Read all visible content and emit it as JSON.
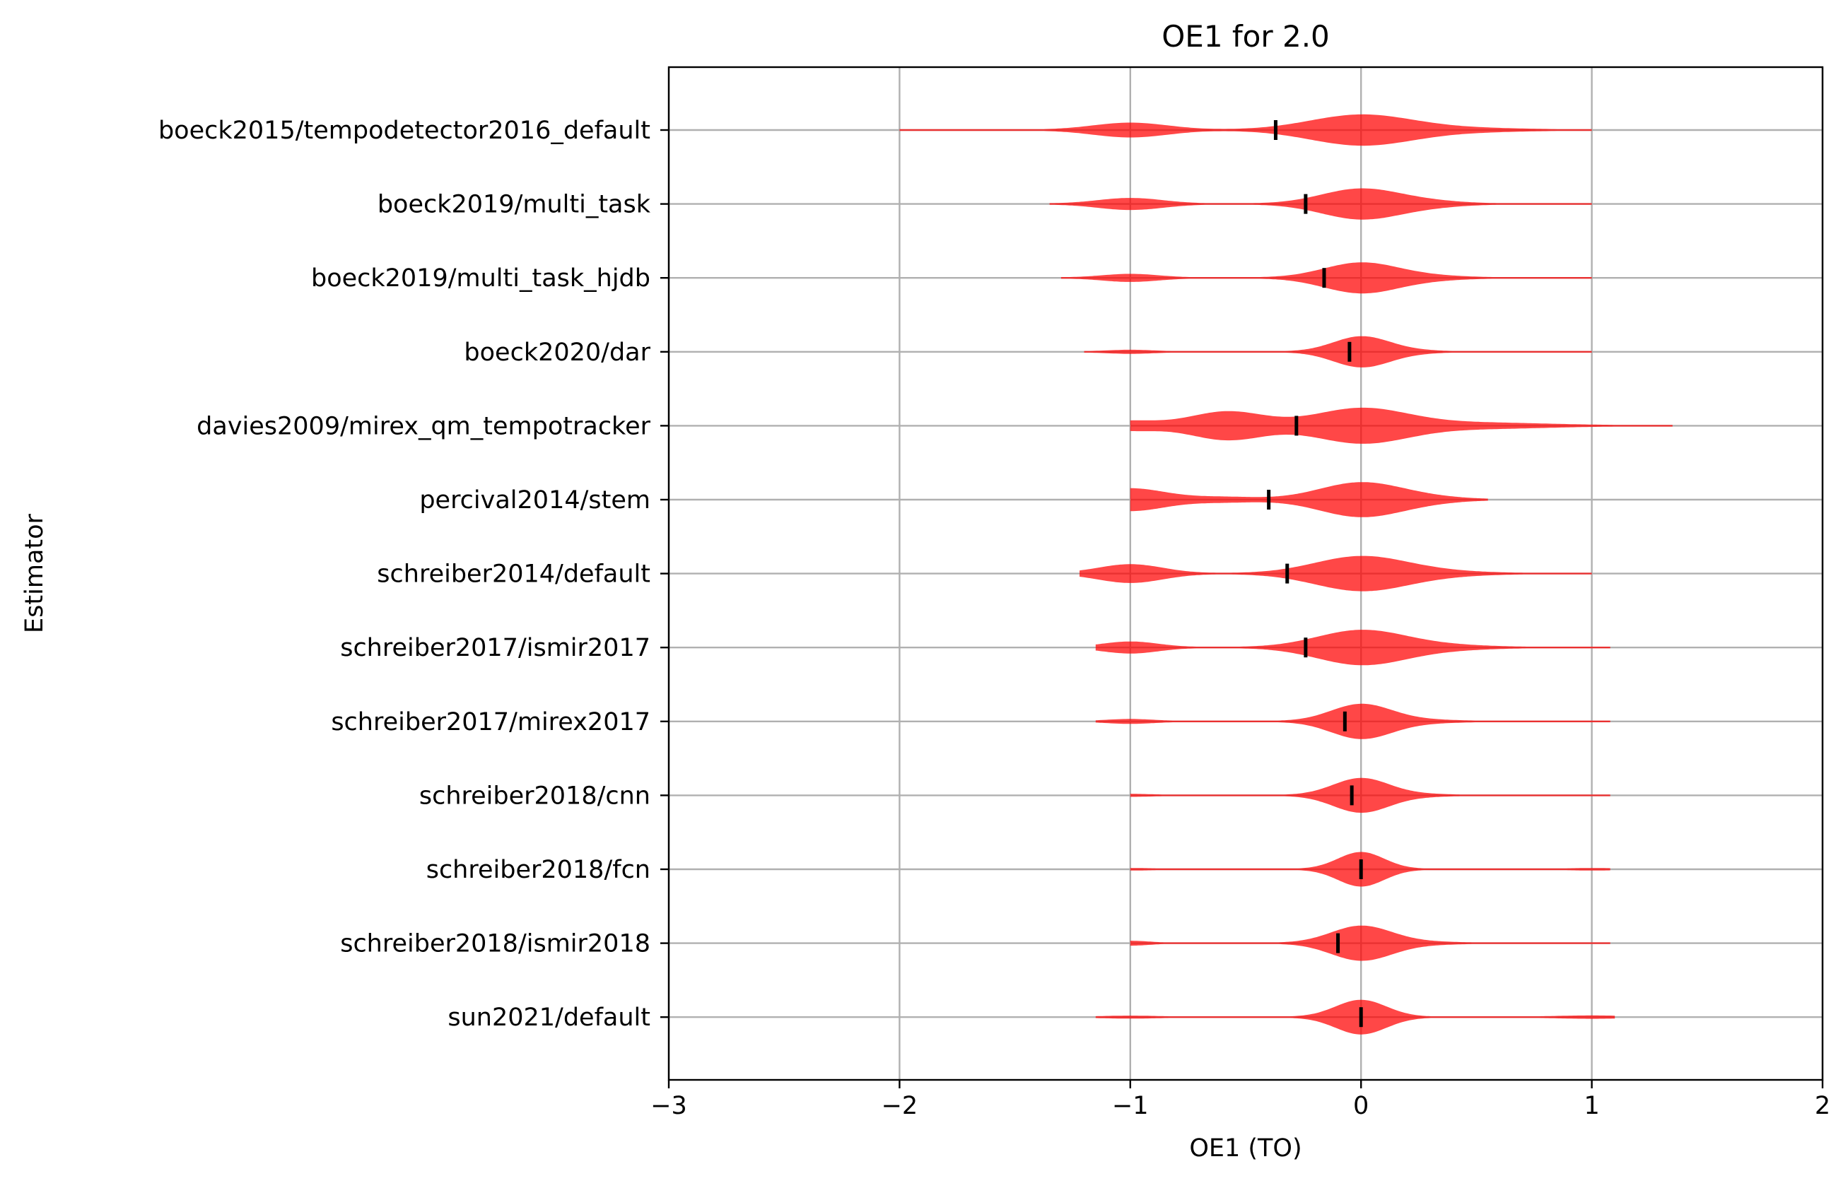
{
  "chart_data": {
    "type": "violin",
    "orientation": "horizontal",
    "title": "OE1 for 2.0",
    "xlabel": "OE1 (TO)",
    "ylabel": "Estimator",
    "xlim": [
      -3,
      2
    ],
    "xticks": [
      {
        "value": -3,
        "label": "−3"
      },
      {
        "value": -2,
        "label": "−2"
      },
      {
        "value": -1,
        "label": "−1"
      },
      {
        "value": 0,
        "label": "0"
      },
      {
        "value": 1,
        "label": "1"
      },
      {
        "value": 2,
        "label": "2"
      }
    ],
    "grid": true,
    "color": "#ff0000",
    "median_color": "#000000",
    "series": [
      {
        "name": "boeck2015/tempodetector2016_default",
        "median": -0.37,
        "min": -2.0,
        "max": 1.0,
        "modes": [
          {
            "x": -1.0,
            "h": 0.35,
            "w": 0.16
          },
          {
            "x": 0.0,
            "h": 0.75,
            "w": 0.22
          },
          {
            "x": 0.45,
            "h": 0.08,
            "w": 0.25
          }
        ]
      },
      {
        "name": "boeck2019/multi_task",
        "median": -0.24,
        "min": -1.35,
        "max": 1.0,
        "modes": [
          {
            "x": -1.0,
            "h": 0.28,
            "w": 0.14
          },
          {
            "x": 0.0,
            "h": 0.75,
            "w": 0.17
          },
          {
            "x": 0.3,
            "h": 0.1,
            "w": 0.15
          }
        ]
      },
      {
        "name": "boeck2019/multi_task_hjdb",
        "median": -0.16,
        "min": -1.3,
        "max": 1.0,
        "modes": [
          {
            "x": -1.0,
            "h": 0.18,
            "w": 0.12
          },
          {
            "x": 0.0,
            "h": 0.75,
            "w": 0.16
          },
          {
            "x": 0.3,
            "h": 0.08,
            "w": 0.15
          }
        ]
      },
      {
        "name": "boeck2020/dar",
        "median": -0.05,
        "min": -1.2,
        "max": 1.0,
        "modes": [
          {
            "x": -1.0,
            "h": 0.08,
            "w": 0.1
          },
          {
            "x": 0.0,
            "h": 0.75,
            "w": 0.12
          },
          {
            "x": 0.2,
            "h": 0.06,
            "w": 0.12
          }
        ]
      },
      {
        "name": "davies2009/mirex_qm_tempotracker",
        "median": -0.28,
        "min": -1.0,
        "max": 1.35,
        "modes": [
          {
            "x": -1.0,
            "h": 0.22,
            "w": 0.12
          },
          {
            "x": -0.58,
            "h": 0.7,
            "w": 0.16
          },
          {
            "x": 0.0,
            "h": 0.85,
            "w": 0.2
          },
          {
            "x": 0.5,
            "h": 0.14,
            "w": 0.3
          }
        ]
      },
      {
        "name": "percival2014/stem",
        "median": -0.4,
        "min": -1.0,
        "max": 0.55,
        "modes": [
          {
            "x": -1.0,
            "h": 0.55,
            "w": 0.15
          },
          {
            "x": -0.6,
            "h": 0.12,
            "w": 0.15
          },
          {
            "x": 0.0,
            "h": 0.85,
            "w": 0.18
          },
          {
            "x": 0.3,
            "h": 0.08,
            "w": 0.15
          }
        ]
      },
      {
        "name": "schreiber2014/default",
        "median": -0.32,
        "min": -1.22,
        "max": 1.0,
        "modes": [
          {
            "x": -1.0,
            "h": 0.45,
            "w": 0.14
          },
          {
            "x": 0.0,
            "h": 0.85,
            "w": 0.2
          },
          {
            "x": 0.35,
            "h": 0.08,
            "w": 0.2
          }
        ]
      },
      {
        "name": "schreiber2017/ismir2017",
        "median": -0.24,
        "min": -1.15,
        "max": 1.08,
        "modes": [
          {
            "x": -1.0,
            "h": 0.28,
            "w": 0.12
          },
          {
            "x": 0.0,
            "h": 0.85,
            "w": 0.19
          },
          {
            "x": 0.35,
            "h": 0.1,
            "w": 0.2
          }
        ]
      },
      {
        "name": "schreiber2017/mirex2017",
        "median": -0.07,
        "min": -1.15,
        "max": 1.08,
        "modes": [
          {
            "x": -1.0,
            "h": 0.1,
            "w": 0.1
          },
          {
            "x": 0.0,
            "h": 0.85,
            "w": 0.13
          },
          {
            "x": 0.25,
            "h": 0.07,
            "w": 0.15
          }
        ]
      },
      {
        "name": "schreiber2018/cnn",
        "median": -0.04,
        "min": -1.0,
        "max": 1.08,
        "modes": [
          {
            "x": -1.0,
            "h": 0.05,
            "w": 0.1
          },
          {
            "x": 0.0,
            "h": 0.85,
            "w": 0.12
          },
          {
            "x": 0.25,
            "h": 0.05,
            "w": 0.12
          }
        ]
      },
      {
        "name": "schreiber2018/fcn",
        "median": 0.0,
        "min": -1.0,
        "max": 1.08,
        "modes": [
          {
            "x": -1.0,
            "h": 0.04,
            "w": 0.1
          },
          {
            "x": 0.0,
            "h": 0.85,
            "w": 0.1
          },
          {
            "x": 1.0,
            "h": 0.04,
            "w": 0.1
          }
        ]
      },
      {
        "name": "schreiber2018/ismir2018",
        "median": -0.1,
        "min": -1.0,
        "max": 1.08,
        "modes": [
          {
            "x": -1.0,
            "h": 0.1,
            "w": 0.08
          },
          {
            "x": 0.0,
            "h": 0.85,
            "w": 0.13
          },
          {
            "x": 0.25,
            "h": 0.06,
            "w": 0.15
          }
        ]
      },
      {
        "name": "sun2021/default",
        "median": 0.0,
        "min": -1.15,
        "max": 1.1,
        "modes": [
          {
            "x": -1.0,
            "h": 0.05,
            "w": 0.12
          },
          {
            "x": 0.0,
            "h": 0.85,
            "w": 0.11
          },
          {
            "x": 1.0,
            "h": 0.06,
            "w": 0.15
          }
        ]
      }
    ]
  }
}
